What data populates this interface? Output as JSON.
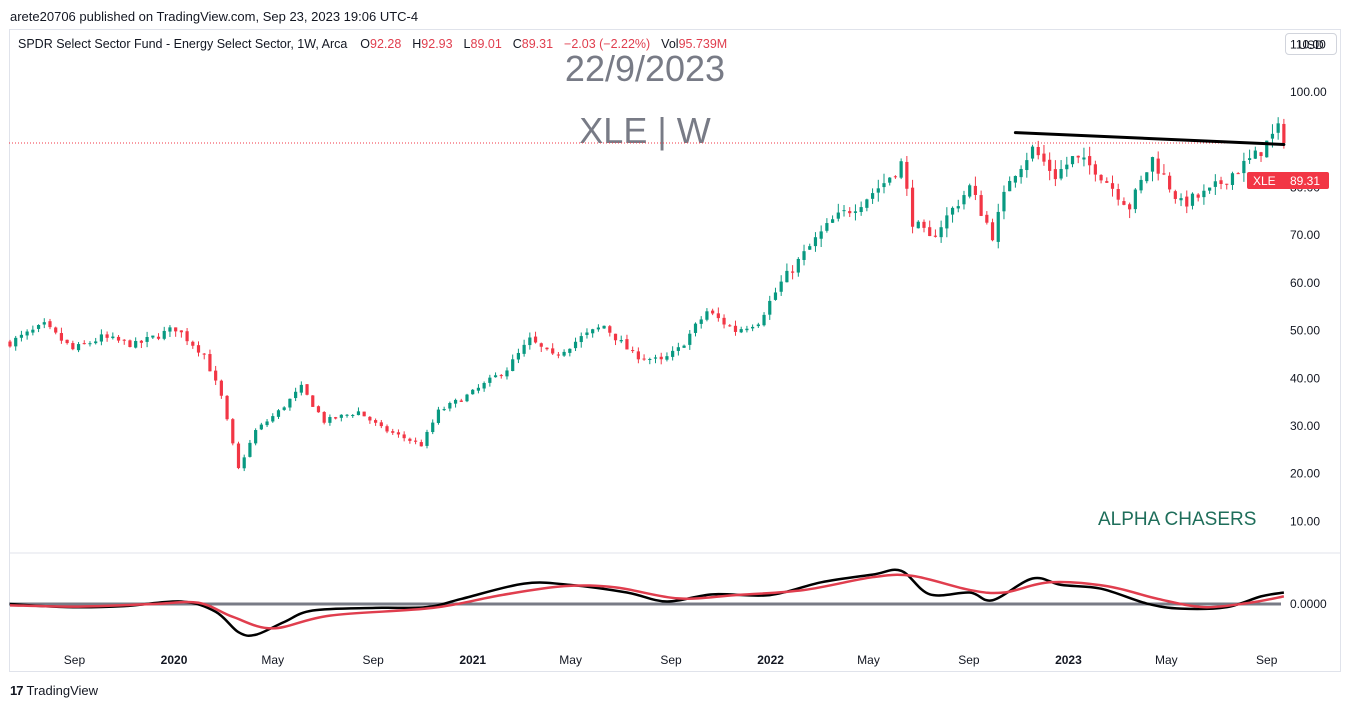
{
  "published_line": "arete20706 published on TradingView.com, Sep 23, 2023 19:06 UTC-4",
  "legend": {
    "name": "SPDR Select Sector Fund - Energy Select Sector, 1W, Arca",
    "o_label": "O",
    "o_value": "92.28",
    "h_label": "H",
    "h_value": "92.93",
    "l_label": "L",
    "l_value": "89.01",
    "c_label": "C",
    "c_value": "89.31",
    "change": "−2.03 (−2.22%)",
    "vol_label": "Vol",
    "vol_value": "95.739M"
  },
  "currency_button": "USD",
  "watermark": {
    "date": "22/9/2023",
    "symbol": "XLE | W"
  },
  "annotation": "ALPHA CHASERS",
  "brand": "TradingView",
  "price_tag": {
    "symbol": "XLE",
    "value": "89.31"
  },
  "colors": {
    "up": "#089981",
    "down": "#f23645",
    "line": "#000000",
    "signal": "#e03e4e",
    "zero": "#787b86"
  },
  "chart_data": [
    {
      "type": "candlestick",
      "symbol": "XLE",
      "interval": "1W",
      "y_ticks": [
        10,
        20,
        30,
        40,
        50,
        60,
        70,
        80,
        90,
        100,
        110
      ],
      "y_tick_labels": [
        "10.00",
        "20.00",
        "30.00",
        "40.00",
        "50.00",
        "60.00",
        "70.00",
        "80.00",
        "",
        "100.00",
        "110.00"
      ],
      "ylim": [
        4,
        113
      ],
      "xlim": [
        "2019-06-14",
        "2023-12-01"
      ],
      "x_ticks": [
        {
          "label": "Sep",
          "date": "2019-09-01",
          "bold": false
        },
        {
          "label": "2020",
          "date": "2020-01-01",
          "bold": true
        },
        {
          "label": "May",
          "date": "2020-05-01",
          "bold": false
        },
        {
          "label": "Sep",
          "date": "2020-09-01",
          "bold": false
        },
        {
          "label": "2021",
          "date": "2021-01-01",
          "bold": true
        },
        {
          "label": "May",
          "date": "2021-05-01",
          "bold": false
        },
        {
          "label": "Sep",
          "date": "2021-09-01",
          "bold": false
        },
        {
          "label": "2022",
          "date": "2022-01-01",
          "bold": true
        },
        {
          "label": "May",
          "date": "2022-05-01",
          "bold": false
        },
        {
          "label": "Sep",
          "date": "2022-09-01",
          "bold": false
        },
        {
          "label": "2023",
          "date": "2023-01-01",
          "bold": true
        },
        {
          "label": "May",
          "date": "2023-05-01",
          "bold": false
        },
        {
          "label": "Sep",
          "date": "2023-09-01",
          "bold": false
        }
      ],
      "last_price": 89.31,
      "close_anchors": [
        [
          "2019-06-14",
          47.5
        ],
        [
          "2019-07-26",
          51
        ],
        [
          "2019-08-30",
          46
        ],
        [
          "2019-10-04",
          48.5
        ],
        [
          "2019-11-15",
          47
        ],
        [
          "2020-01-03",
          50.5
        ],
        [
          "2020-02-07",
          45
        ],
        [
          "2020-02-28",
          36
        ],
        [
          "2020-03-20",
          21
        ],
        [
          "2020-04-10",
          29
        ],
        [
          "2020-05-08",
          33
        ],
        [
          "2020-06-05",
          38
        ],
        [
          "2020-07-03",
          31
        ],
        [
          "2020-08-14",
          33
        ],
        [
          "2020-09-11",
          29.5
        ],
        [
          "2020-10-02",
          28
        ],
        [
          "2020-10-30",
          26
        ],
        [
          "2020-11-20",
          33
        ],
        [
          "2021-01-01",
          37
        ],
        [
          "2021-02-12",
          42
        ],
        [
          "2021-03-12",
          48
        ],
        [
          "2021-04-09",
          44.5
        ],
        [
          "2021-05-14",
          48.5
        ],
        [
          "2021-06-11",
          51
        ],
        [
          "2021-07-16",
          45
        ],
        [
          "2021-08-20",
          43.5
        ],
        [
          "2021-09-10",
          46
        ],
        [
          "2021-10-15",
          54
        ],
        [
          "2021-11-19",
          50
        ],
        [
          "2021-12-17",
          52
        ],
        [
          "2022-01-14",
          60
        ],
        [
          "2022-02-25",
          69
        ],
        [
          "2022-03-18",
          73
        ],
        [
          "2022-04-22",
          77
        ],
        [
          "2022-05-20",
          81
        ],
        [
          "2022-06-10",
          85
        ],
        [
          "2022-06-24",
          73
        ],
        [
          "2022-07-15",
          69
        ],
        [
          "2022-08-19",
          77
        ],
        [
          "2022-09-02",
          80
        ],
        [
          "2022-09-30",
          70
        ],
        [
          "2022-10-21",
          82
        ],
        [
          "2022-11-18",
          88
        ],
        [
          "2022-12-16",
          82.5
        ],
        [
          "2023-01-06",
          86
        ],
        [
          "2023-02-03",
          84
        ],
        [
          "2023-03-17",
          76
        ],
        [
          "2023-04-14",
          86
        ],
        [
          "2023-05-19",
          76.5
        ],
        [
          "2023-06-23",
          79
        ],
        [
          "2023-07-21",
          83
        ],
        [
          "2023-08-18",
          86.5
        ],
        [
          "2023-09-15",
          92
        ],
        [
          "2023-09-22",
          89.31
        ]
      ],
      "trendline": {
        "from": [
          "2022-10-28",
          91.5
        ],
        "to": [
          "2023-09-22",
          89.0
        ]
      }
    },
    {
      "type": "line",
      "indicator": "oscillator",
      "zero_label": "0.0000",
      "ylim": [
        -1.6,
        1.8
      ],
      "series": [
        {
          "color_key": "line",
          "points": [
            [
              "2019-06-14",
              0
            ],
            [
              "2019-08-23",
              -0.12
            ],
            [
              "2019-11-01",
              -0.08
            ],
            [
              "2020-01-10",
              0.1
            ],
            [
              "2020-02-21",
              -0.3
            ],
            [
              "2020-03-20",
              -1.1
            ],
            [
              "2020-04-10",
              -1.2
            ],
            [
              "2020-05-15",
              -0.7
            ],
            [
              "2020-06-19",
              -0.25
            ],
            [
              "2020-09-04",
              -0.15
            ],
            [
              "2020-11-06",
              -0.12
            ],
            [
              "2020-12-18",
              0.2
            ],
            [
              "2021-03-05",
              0.8
            ],
            [
              "2021-04-30",
              0.75
            ],
            [
              "2021-07-09",
              0.45
            ],
            [
              "2021-08-27",
              0.1
            ],
            [
              "2021-10-22",
              0.38
            ],
            [
              "2021-12-31",
              0.35
            ],
            [
              "2022-03-04",
              0.85
            ],
            [
              "2022-05-06",
              1.15
            ],
            [
              "2022-06-10",
              1.3
            ],
            [
              "2022-07-15",
              0.38
            ],
            [
              "2022-09-02",
              0.45
            ],
            [
              "2022-09-30",
              0.15
            ],
            [
              "2022-11-18",
              1.0
            ],
            [
              "2022-12-23",
              0.75
            ],
            [
              "2023-02-10",
              0.6
            ],
            [
              "2023-04-07",
              0.02
            ],
            [
              "2023-05-19",
              -0.18
            ],
            [
              "2023-07-14",
              -0.12
            ],
            [
              "2023-08-25",
              0.3
            ],
            [
              "2023-09-22",
              0.45
            ]
          ]
        },
        {
          "color_key": "signal",
          "points": [
            [
              "2019-06-14",
              -0.05
            ],
            [
              "2019-09-06",
              -0.1
            ],
            [
              "2019-12-06",
              0
            ],
            [
              "2020-01-31",
              0.05
            ],
            [
              "2020-03-13",
              -0.5
            ],
            [
              "2020-05-01",
              -0.95
            ],
            [
              "2020-07-10",
              -0.45
            ],
            [
              "2020-11-13",
              -0.15
            ],
            [
              "2021-02-05",
              0.35
            ],
            [
              "2021-04-23",
              0.7
            ],
            [
              "2021-06-25",
              0.65
            ],
            [
              "2021-09-10",
              0.22
            ],
            [
              "2021-11-19",
              0.35
            ],
            [
              "2022-02-11",
              0.55
            ],
            [
              "2022-05-06",
              1.05
            ],
            [
              "2022-06-24",
              1.1
            ],
            [
              "2022-09-02",
              0.55
            ],
            [
              "2022-10-14",
              0.45
            ],
            [
              "2022-12-09",
              0.85
            ],
            [
              "2023-02-17",
              0.7
            ],
            [
              "2023-04-21",
              0.2
            ],
            [
              "2023-06-16",
              -0.12
            ],
            [
              "2023-08-11",
              0.05
            ],
            [
              "2023-09-22",
              0.3
            ]
          ]
        }
      ]
    }
  ]
}
